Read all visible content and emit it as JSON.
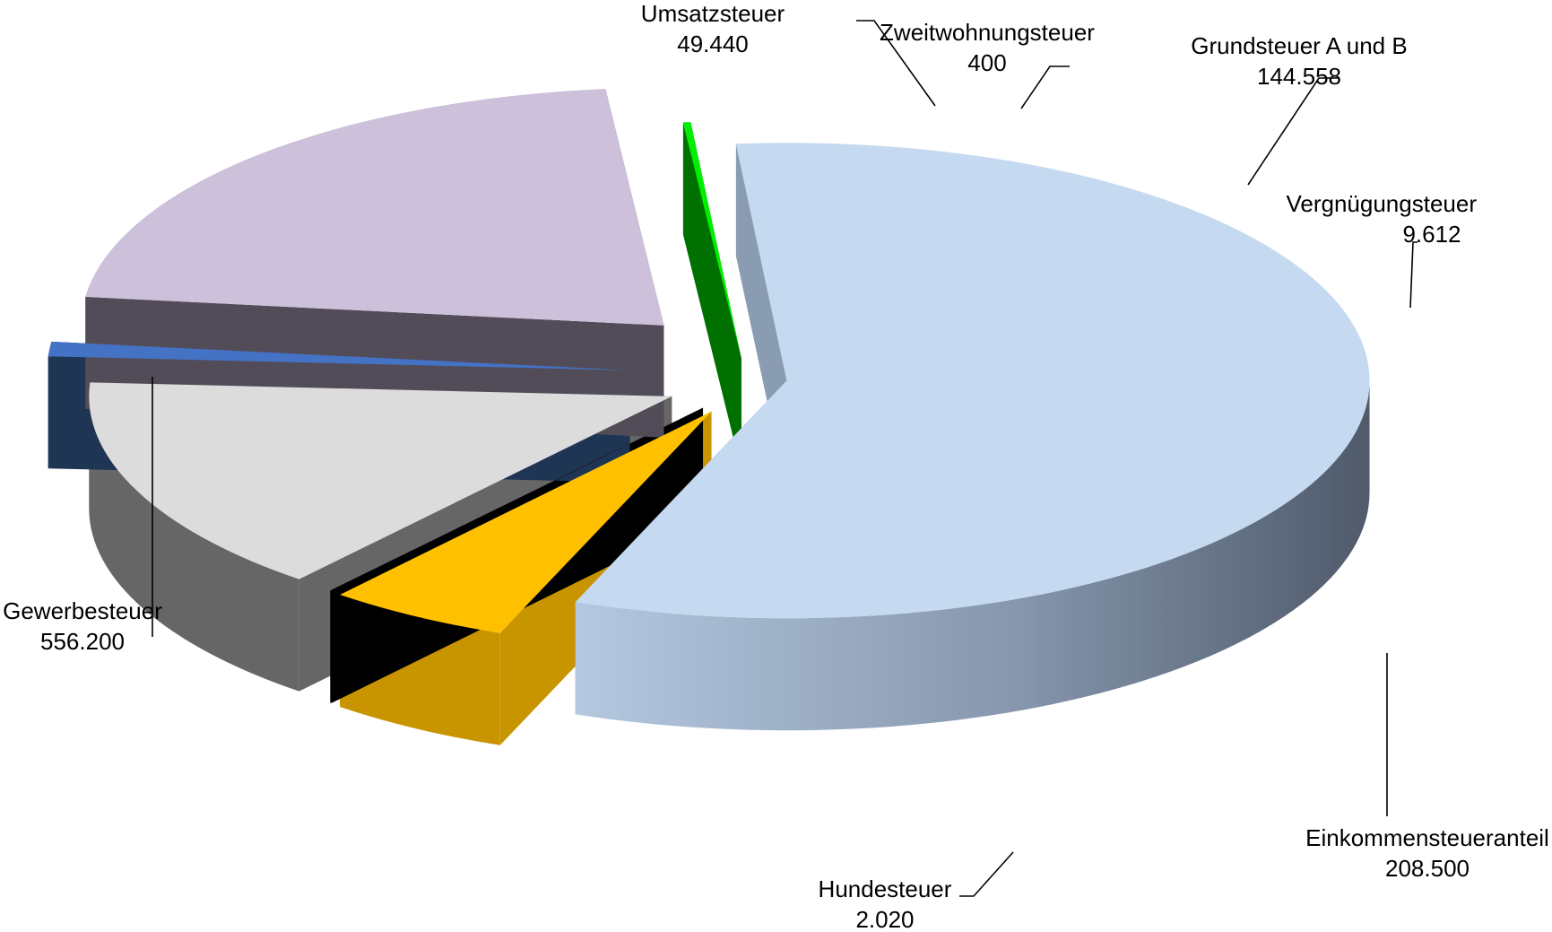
{
  "chart_data": {
    "type": "pie",
    "style": "3d-exploded",
    "title": "",
    "slices": [
      {
        "label": "Gewerbesteuer",
        "value": 556200,
        "display": "556.200",
        "top": "#c5d9f1",
        "side": "#8a9cb2"
      },
      {
        "label": "Umsatzsteuer",
        "value": 49440,
        "display": "49.440",
        "top": "#ffc000",
        "side": "#c89500"
      },
      {
        "label": "Zweitwohnungsteuer",
        "value": 400,
        "display": "400",
        "top": "#000000",
        "side": "#000000"
      },
      {
        "label": "Grundsteuer A und B",
        "value": 144558,
        "display": "144.558",
        "top": "#dcdcdc",
        "side": "#666666"
      },
      {
        "label": "Vergnügungsteuer",
        "value": 9612,
        "display": "9.612",
        "top": "#4472c4",
        "side": "#1f3554"
      },
      {
        "label": "Einkommensteueranteil",
        "value": 208500,
        "display": "208.500",
        "top": "#ccc0da",
        "side": "#524c58"
      },
      {
        "label": "Hundesteuer",
        "value": 2020,
        "display": "2.020",
        "top": "#00ee00",
        "side": "#007000"
      }
    ]
  }
}
